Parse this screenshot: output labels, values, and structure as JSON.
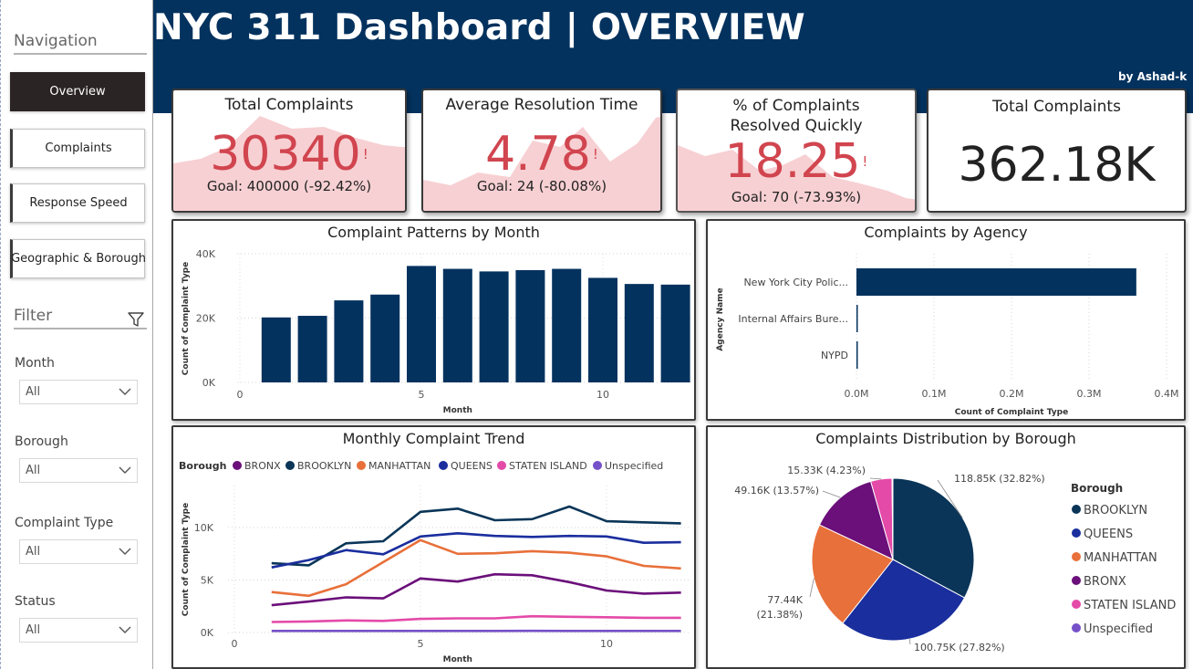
{
  "colors": {
    "header": "#04325e",
    "accent_red": "#d1454f",
    "bar_navy": "#04325e",
    "sidebar_active": "#2b2424"
  },
  "header": {
    "title": "NYC 311 Dashboard | OVERVIEW",
    "byline": "by Ashad-k"
  },
  "sidebar": {
    "nav_heading": "Navigation",
    "nav_items": [
      {
        "label": "Overview",
        "active": true
      },
      {
        "label": "Complaints",
        "active": false
      },
      {
        "label": "Response Speed",
        "active": false
      },
      {
        "label": "Geographic & Borough",
        "active": false
      }
    ],
    "filter_heading": "Filter",
    "filter_icon": "funnel-icon",
    "filters": [
      {
        "label": "Month",
        "value": "All"
      },
      {
        "label": "Borough",
        "value": "All"
      },
      {
        "label": "Complaint Type",
        "value": "All"
      },
      {
        "label": "Status",
        "value": "All"
      }
    ]
  },
  "kpis": [
    {
      "title": "Total Complaints",
      "value": "30340",
      "flag": "!",
      "goal": "Goal: 400000 (-92.42%)"
    },
    {
      "title": "Average Resolution Time",
      "value": "4.78",
      "flag": "!",
      "goal": "Goal: 24 (-80.08%)"
    },
    {
      "title": "% of Complaints Resolved Quickly",
      "value": "18.25",
      "flag": "!",
      "goal": "Goal: 70 (-73.93%)"
    },
    {
      "title": "Total Complaints",
      "value": "362.18K"
    }
  ],
  "chart_data": [
    {
      "type": "bar",
      "title": "Complaint Patterns by Month",
      "xlabel": "Month",
      "ylabel": "Count of Complaint Type",
      "x": [
        1,
        2,
        3,
        4,
        5,
        6,
        7,
        8,
        9,
        10,
        11,
        12
      ],
      "values": [
        20200,
        20700,
        25500,
        27300,
        36200,
        35300,
        34500,
        34900,
        35300,
        32500,
        30600,
        30400
      ],
      "xticks": [
        "0",
        "5",
        "10"
      ],
      "yticks": [
        "0K",
        "20K",
        "40K"
      ],
      "ylim": [
        0,
        40000
      ],
      "grid": true
    },
    {
      "type": "bar",
      "orientation": "horizontal",
      "title": "Complaints by Agency",
      "xlabel": "Count of Complaint Type",
      "ylabel": "Agency Name",
      "categories": [
        "New York City Polic...",
        "Internal Affairs Bure...",
        "NYPD"
      ],
      "values": [
        361000,
        800,
        300
      ],
      "xticks": [
        "0.0M",
        "0.1M",
        "0.2M",
        "0.3M",
        "0.4M"
      ],
      "xlim": [
        0,
        400000
      ],
      "grid": true
    },
    {
      "type": "line",
      "title": "Monthly Complaint Trend",
      "xlabel": "Month",
      "ylabel": "Count of Complaint Type",
      "legend_title": "Borough",
      "legend_position": "top-left",
      "x": [
        1,
        2,
        3,
        4,
        5,
        6,
        7,
        8,
        9,
        10,
        11,
        12
      ],
      "xticks": [
        "0",
        "5",
        "10"
      ],
      "yticks": [
        "0K",
        "5K",
        "10K"
      ],
      "ylim": [
        0,
        14000
      ],
      "series": [
        {
          "name": "BRONX",
          "color": "#6b0f7a",
          "values": [
            2600,
            2950,
            3350,
            3250,
            5150,
            4850,
            5550,
            5450,
            4800,
            4000,
            3700,
            3800
          ]
        },
        {
          "name": "BROOKLYN",
          "color": "#0a3558",
          "values": [
            6600,
            6400,
            8500,
            8700,
            11500,
            11800,
            10700,
            10800,
            12000,
            10600,
            10500,
            10400
          ]
        },
        {
          "name": "MANHATTAN",
          "color": "#e8703a",
          "values": [
            3850,
            3500,
            4600,
            6700,
            8800,
            7500,
            7550,
            7750,
            7600,
            7250,
            6350,
            6100
          ]
        },
        {
          "name": "QUEENS",
          "color": "#1a2e9e",
          "values": [
            6200,
            6900,
            7850,
            7450,
            9150,
            9450,
            9200,
            9100,
            9200,
            9150,
            8550,
            8600
          ]
        },
        {
          "name": "STATEN ISLAND",
          "color": "#e44aa8",
          "values": [
            1000,
            1050,
            1150,
            1100,
            1300,
            1350,
            1350,
            1550,
            1500,
            1450,
            1400,
            1400
          ]
        },
        {
          "name": "Unspecified",
          "color": "#7650c8",
          "values": [
            150,
            150,
            150,
            150,
            150,
            150,
            150,
            160,
            150,
            150,
            150,
            150
          ]
        }
      ],
      "grid": true
    },
    {
      "type": "pie",
      "title": "Complaints Distribution by Borough",
      "legend_title": "Borough",
      "legend_position": "right",
      "slices": [
        {
          "name": "BROOKLYN",
          "value": 118850,
          "label": "118.85K (32.82%)",
          "color": "#0a3558"
        },
        {
          "name": "QUEENS",
          "value": 100750,
          "label": "100.75K (27.82%)",
          "color": "#1a2e9e"
        },
        {
          "name": "MANHATTAN",
          "value": 77440,
          "label": "77.44K (21.38%)",
          "color": "#e8703a"
        },
        {
          "name": "BRONX",
          "value": 49160,
          "label": "49.16K (13.57%)",
          "color": "#6b0f7a"
        },
        {
          "name": "STATEN ISLAND",
          "value": 15330,
          "label": "15.33K (4.23%)",
          "color": "#e44aa8"
        },
        {
          "name": "Unspecified",
          "value": 650,
          "label": "",
          "color": "#7650c8"
        }
      ]
    }
  ]
}
